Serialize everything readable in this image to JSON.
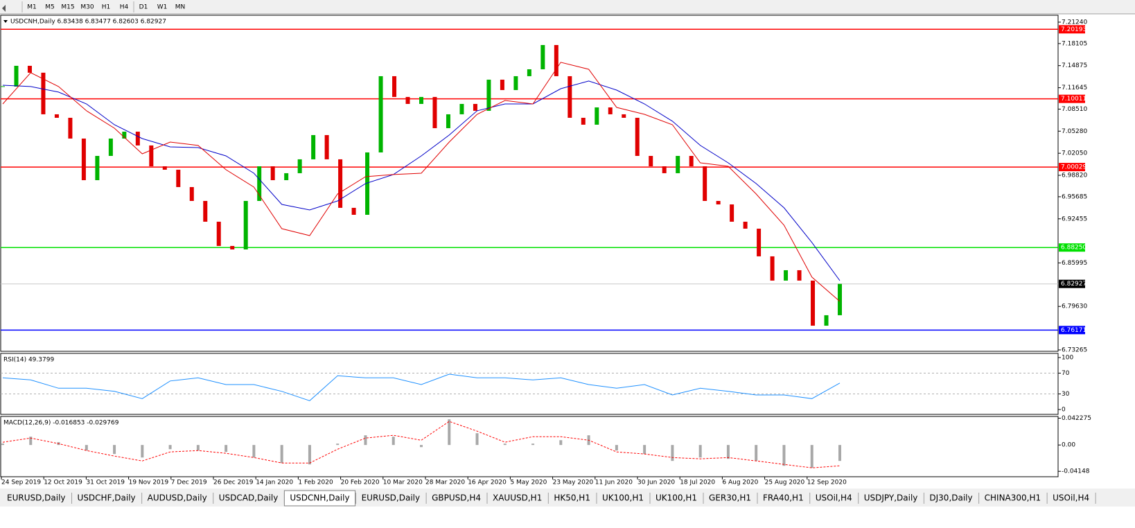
{
  "toolbar": {
    "timeframes": [
      "M1",
      "M5",
      "M15",
      "M30",
      "H1",
      "H4",
      "D1",
      "W1",
      "MN"
    ]
  },
  "chart_data": [
    {
      "type": "candlestick",
      "title": "USDCNH,Daily  6.83438 6.83477 6.82603 6.82927",
      "values": [
        7.1181,
        7.1485,
        7.1384,
        7.0775,
        7.0724,
        7.042,
        6.9811,
        7.0166,
        7.042,
        7.0521,
        7.0319,
        7.0014,
        6.9964,
        6.971,
        6.9507,
        6.9203,
        6.8848,
        6.8797,
        6.9507,
        7.0014,
        6.9811,
        6.9913,
        7.0116,
        7.0471,
        7.0116,
        6.9406,
        6.9304,
        7.0217,
        7.1333,
        7.1029,
        7.0927,
        7.1029,
        7.0572,
        7.0775,
        7.0927,
        7.0826,
        7.1282,
        7.113,
        7.1333,
        7.1434,
        7.1789,
        7.1333,
        7.0724,
        7.0623,
        7.0876,
        7.0775,
        7.0724,
        7.0166,
        7.0014,
        6.9913,
        7.0166,
        7.0014,
        6.9507,
        6.9456,
        6.9203,
        6.9101,
        6.8696,
        6.8341,
        6.8493,
        6.8341,
        6.7681,
        6.7834,
        6.8293
      ],
      "up_color": "#00b400",
      "down_color": "#e00000",
      "series": [
        {
          "color": "#0000c8",
          "values": [
            7.1201,
            7.1181,
            7.11,
            7.0927,
            7.0623,
            7.042,
            7.0298,
            7.0288,
            7.0166,
            6.9913,
            6.9456,
            6.9375,
            6.9507,
            6.9761,
            6.9893,
            7.0166,
            7.0471,
            7.0826,
            7.0927,
            7.0927,
            7.115,
            7.1262,
            7.113,
            7.0927,
            7.0674,
            7.0319,
            7.0065,
            6.9761,
            6.9406,
            6.8899,
            6.8341
          ]
        },
        {
          "color": "#e00000",
          "values": [
            7.0927,
            7.1384,
            7.1181,
            7.0826,
            7.0572,
            7.0197,
            7.0369,
            7.0319,
            6.9964,
            6.971,
            6.9101,
            6.9,
            6.9609,
            6.9862,
            6.9893,
            6.9913,
            7.0369,
            7.0775,
            7.0978,
            7.0927,
            7.1536,
            7.1434,
            7.0876,
            7.0775,
            7.0623,
            7.0065,
            7.0014,
            6.9609,
            6.9152,
            6.8392,
            6.8036
          ]
        }
      ],
      "ylim": [
        6.7306,
        7.2225
      ],
      "yticks": [
        {
          "value": 7.2124,
          "label": "7.21240"
        },
        7.18105,
        7.14875,
        7.11645,
        {
          "value": 7.0851,
          "label": "7.08510"
        },
        {
          "value": 7.0528,
          "label": "7.05280"
        },
        {
          "value": 7.0205,
          "label": "7.02050"
        },
        {
          "value": 6.9882,
          "label": "6.98820"
        },
        6.95685,
        6.92455,
        6.85995,
        {
          "value": 6.7963,
          "label": "6.79630"
        },
        6.73265
      ],
      "levels": [
        {
          "value": 7.20193,
          "color": "#ff0000",
          "box": "#ff0000"
        },
        {
          "value": 7.10011,
          "color": "#ff0000",
          "box": "#ff0000"
        },
        {
          "value": 7.00029,
          "color": "#ff0000",
          "box": "#ff0000"
        },
        {
          "value": 6.8825,
          "label": "6.88250",
          "color": "#00e000",
          "box": "#00e000"
        },
        {
          "value": 6.82927,
          "color": "#c8c8c8",
          "box": "#000000"
        },
        {
          "value": 6.76171,
          "color": "#0000ff",
          "box": "#0000ff"
        }
      ]
    },
    {
      "type": "line",
      "title": "RSI(14) 49.3799",
      "color": "#1e90ff",
      "values": [
        61,
        57,
        41,
        41,
        35,
        21,
        55,
        61,
        48,
        48,
        35,
        17,
        65,
        61,
        61,
        48,
        68,
        61,
        61,
        57,
        61,
        48,
        41,
        48,
        28,
        41,
        35,
        28,
        28,
        21,
        51
      ],
      "ylim": [
        -9.3,
        108
      ],
      "yticks": [
        100,
        70,
        30,
        0
      ],
      "levels": [
        70,
        30
      ]
    },
    {
      "type": "bar",
      "title": "MACD(12,26,9) -0.016853 -0.029769",
      "color": "#a8a8a8",
      "values": [
        0.0022,
        0.0131,
        0.0044,
        -0.0087,
        -0.0142,
        -0.0197,
        -0.0066,
        -0.0087,
        -0.0109,
        -0.0197,
        -0.0284,
        -0.0306,
        0.0022,
        0.0153,
        0.0131,
        -0.0033,
        0.0404,
        0.0186,
        0.0022,
        0.0022,
        0.0076,
        0.0153,
        -0.0087,
        -0.0142,
        -0.0251,
        -0.0197,
        -0.0218,
        -0.0251,
        -0.0328,
        -0.036,
        -0.0251
      ],
      "series": [
        {
          "color": "#ff0000",
          "dash": true,
          "values": [
            0.0044,
            0.0109,
            0.0022,
            -0.0087,
            -0.0175,
            -0.0251,
            -0.0109,
            -0.0087,
            -0.0131,
            -0.0197,
            -0.0284,
            -0.0284,
            -0.0066,
            0.0109,
            0.0153,
            0.0076,
            0.0371,
            0.0218,
            0.0044,
            0.0131,
            0.0131,
            0.0076,
            -0.0109,
            -0.0142,
            -0.0197,
            -0.0218,
            -0.0197,
            -0.0251,
            -0.0306,
            -0.036,
            -0.0328
          ]
        }
      ],
      "ylim": [
        -0.05,
        0.045
      ],
      "yticks": [
        0.042275,
        {
          "value": 0,
          "label": "0.00"
        },
        -0.04148
      ]
    }
  ],
  "x_labels": [
    "24 Sep 2019",
    "12 Oct 2019",
    "31 Oct 2019",
    "19 Nov 2019",
    "7 Dec 2019",
    "26 Dec 2019",
    "14 Jan 2020",
    "1 Feb 2020",
    "20 Feb 2020",
    "10 Mar 2020",
    "28 Mar 2020",
    "16 Apr 2020",
    "5 May 2020",
    "23 May 2020",
    "11 Jun 2020",
    "30 Jun 2020",
    "18 Jul 2020",
    "6 Aug 2020",
    "25 Aug 2020",
    "12 Sep 2020"
  ],
  "tabs": {
    "items": [
      "EURUSD,Daily",
      "USDCHF,Daily",
      "AUDUSD,Daily",
      "USDCAD,Daily",
      "USDCNH,Daily",
      "EURUSD,Daily",
      "GBPUSD,H4",
      "XAUUSD,H1",
      "HK50,H1",
      "UK100,H1",
      "UK100,H1",
      "GER30,H1",
      "FRA40,H1",
      "USOil,H4",
      "USDJPY,Daily",
      "DJ30,Daily",
      "CHINA300,H1",
      "USOil,H4"
    ],
    "active": 4
  }
}
